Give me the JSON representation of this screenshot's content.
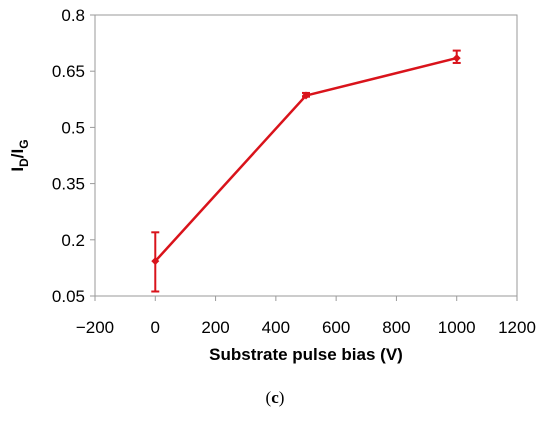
{
  "chart_data": {
    "type": "line",
    "title": "",
    "xlabel": "Substrate pulse bias (V)",
    "ylabel": {
      "main": "I",
      "sub1": "D",
      "slash": "/I",
      "sub2": "G"
    },
    "xlim": [
      -200,
      1200
    ],
    "ylim": [
      0.05,
      0.8
    ],
    "xticks": [
      "−200",
      "0",
      "200",
      "400",
      "600",
      "800",
      "1000",
      "1200"
    ],
    "xtick_values": [
      -200,
      0,
      200,
      400,
      600,
      800,
      1000,
      1200
    ],
    "yticks": [
      "0.05",
      "0.2",
      "0.35",
      "0.5",
      "0.65",
      "0.8"
    ],
    "ytick_values": [
      0.05,
      0.2,
      0.35,
      0.5,
      0.65,
      0.8
    ],
    "grid": false,
    "legend": "none",
    "series": [
      {
        "x": [
          0,
          500,
          1000
        ],
        "y": [
          0.143,
          0.585,
          0.685
        ],
        "yerr_low": [
          0.062,
          0.582,
          0.672
        ],
        "yerr_high": [
          0.22,
          0.592,
          0.705
        ],
        "color": "#d9131b"
      }
    ]
  },
  "caption": {
    "open": "(",
    "letter": "c",
    "close": ")"
  }
}
